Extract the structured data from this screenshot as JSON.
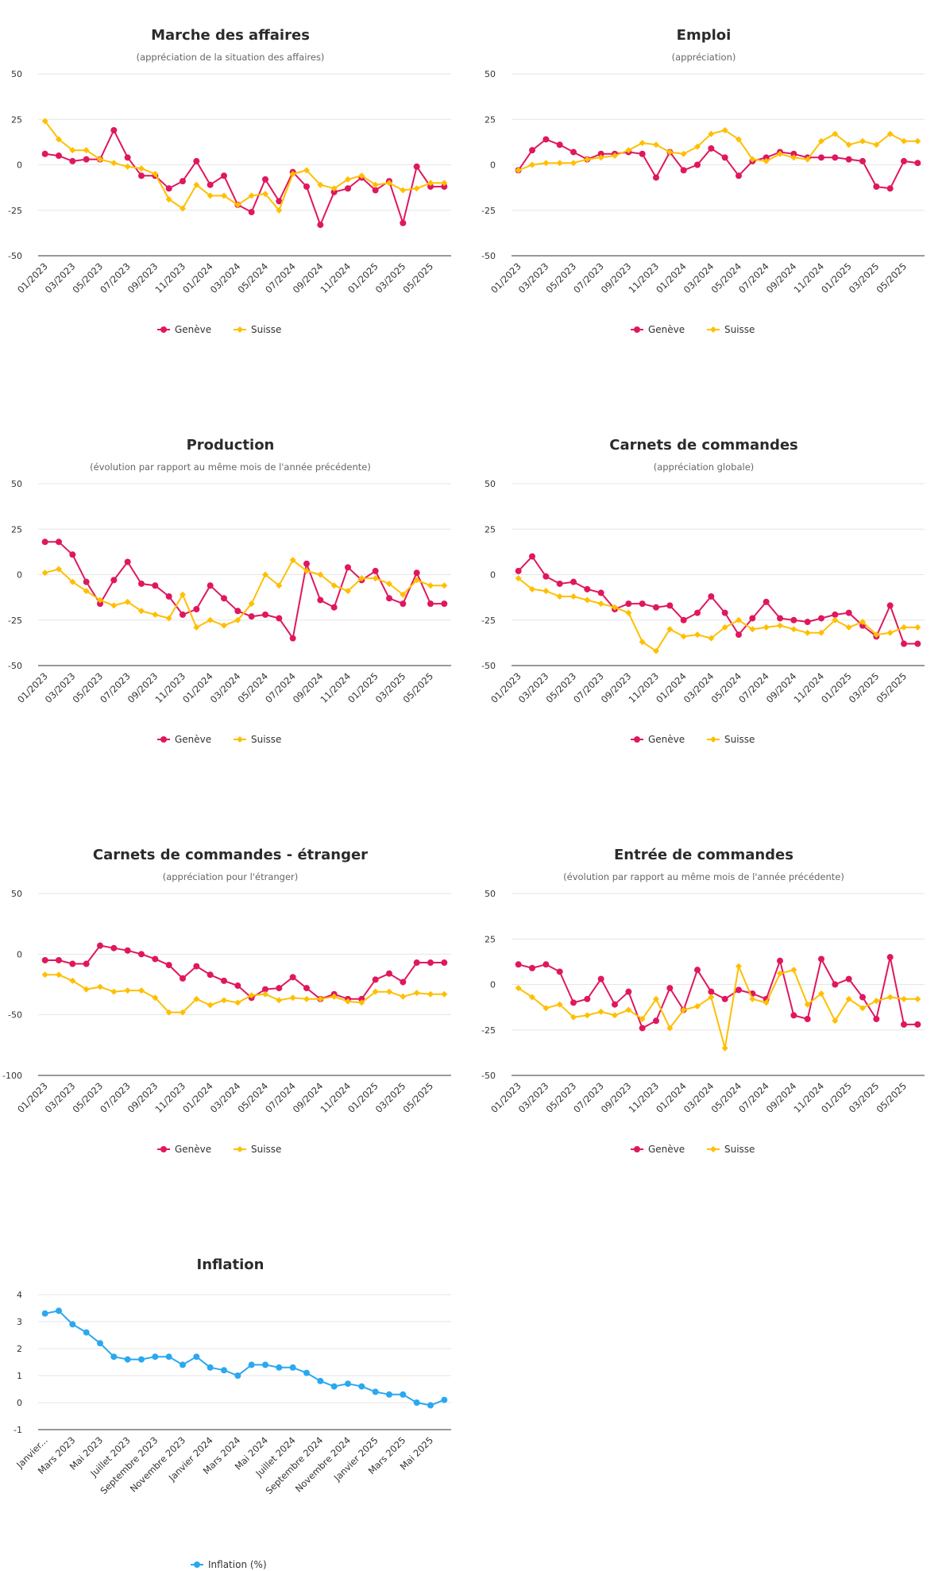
{
  "colors": {
    "geneve": "#e0175f",
    "suisse": "#ffbf00",
    "inflation": "#2aa8f0"
  },
  "chart_data": [
    {
      "type": "line",
      "title": "Marche des affaires",
      "subtitle": "(appréciation de la situation des affaires)",
      "ylim": [
        -50,
        50
      ],
      "yticks": [
        "50",
        "25",
        "0",
        "-25",
        "-50"
      ],
      "x": [
        "01/2023",
        "02/2023",
        "03/2023",
        "04/2023",
        "05/2023",
        "06/2023",
        "07/2023",
        "08/2023",
        "09/2023",
        "10/2023",
        "11/2023",
        "12/2023",
        "01/2024",
        "02/2024",
        "03/2024",
        "04/2024",
        "05/2024",
        "06/2024",
        "07/2024",
        "08/2024",
        "09/2024",
        "10/2024",
        "11/2024",
        "12/2024",
        "01/2025",
        "02/2025",
        "03/2025",
        "04/2025",
        "05/2025",
        "06/2025"
      ],
      "xtick_labels": [
        "01/2023",
        "03/2023",
        "05/2023",
        "07/2023",
        "09/2023",
        "11/2023",
        "01/2024",
        "03/2024",
        "05/2024",
        "07/2024",
        "09/2024",
        "11/2024",
        "01/2025",
        "03/2025",
        "05/2025"
      ],
      "series": [
        {
          "name": "Genève",
          "values": [
            6,
            5,
            2,
            3,
            3,
            19,
            4,
            -6,
            -6,
            -13,
            -9,
            2,
            -11,
            -6,
            -22,
            -26,
            -8,
            -20,
            -4,
            -12,
            -33,
            -15,
            -13,
            -7,
            -14,
            -9,
            -32,
            -1,
            -12,
            -12
          ]
        },
        {
          "name": "Suisse",
          "values": [
            24,
            14,
            8,
            8,
            3,
            1,
            -1,
            -2,
            -5,
            -19,
            -24,
            -11,
            -17,
            -17,
            -22,
            -17,
            -16,
            -25,
            -5,
            -3,
            -11,
            -13,
            -8,
            -6,
            -11,
            -10,
            -14,
            -13,
            -10,
            -10
          ]
        }
      ],
      "legend": "bottom-center"
    },
    {
      "type": "line",
      "title": "Emploi",
      "subtitle": "(appréciation)",
      "ylim": [
        -50,
        50
      ],
      "yticks": [
        "50",
        "25",
        "0",
        "-25",
        "-50"
      ],
      "x": [
        "01/2023",
        "02/2023",
        "03/2023",
        "04/2023",
        "05/2023",
        "06/2023",
        "07/2023",
        "08/2023",
        "09/2023",
        "10/2023",
        "11/2023",
        "12/2023",
        "01/2024",
        "02/2024",
        "03/2024",
        "04/2024",
        "05/2024",
        "06/2024",
        "07/2024",
        "08/2024",
        "09/2024",
        "10/2024",
        "11/2024",
        "12/2024",
        "01/2025",
        "02/2025",
        "03/2025",
        "04/2025",
        "05/2025",
        "06/2025"
      ],
      "xtick_labels": [
        "01/2023",
        "03/2023",
        "05/2023",
        "07/2023",
        "09/2023",
        "11/2023",
        "01/2024",
        "03/2024",
        "05/2024",
        "07/2024",
        "09/2024",
        "11/2024",
        "01/2025",
        "03/2025",
        "05/2025"
      ],
      "series": [
        {
          "name": "Genève",
          "values": [
            -3,
            8,
            14,
            11,
            7,
            3,
            6,
            6,
            7,
            6,
            -7,
            7,
            -3,
            0,
            9,
            4,
            -6,
            2,
            4,
            7,
            6,
            4,
            4,
            4,
            3,
            2,
            -12,
            -13,
            2,
            1
          ]
        },
        {
          "name": "Suisse",
          "values": [
            -3,
            0,
            1,
            1,
            1,
            3,
            4,
            5,
            8,
            12,
            11,
            7,
            6,
            10,
            17,
            19,
            14,
            3,
            2,
            6,
            4,
            3,
            13,
            17,
            11,
            13,
            11,
            17,
            13,
            13
          ]
        }
      ],
      "legend": "bottom-center"
    },
    {
      "type": "line",
      "title": "Production",
      "subtitle": "(évolution par rapport au même mois de l'année précédente)",
      "ylim": [
        -50,
        50
      ],
      "yticks": [
        "50",
        "25",
        "0",
        "-25",
        "-50"
      ],
      "x": [
        "01/2023",
        "02/2023",
        "03/2023",
        "04/2023",
        "05/2023",
        "06/2023",
        "07/2023",
        "08/2023",
        "09/2023",
        "10/2023",
        "11/2023",
        "12/2023",
        "01/2024",
        "02/2024",
        "03/2024",
        "04/2024",
        "05/2024",
        "06/2024",
        "07/2024",
        "08/2024",
        "09/2024",
        "10/2024",
        "11/2024",
        "12/2024",
        "01/2025",
        "02/2025",
        "03/2025",
        "04/2025",
        "05/2025",
        "06/2025"
      ],
      "xtick_labels": [
        "01/2023",
        "03/2023",
        "05/2023",
        "07/2023",
        "09/2023",
        "11/2023",
        "01/2024",
        "03/2024",
        "05/2024",
        "07/2024",
        "09/2024",
        "11/2024",
        "01/2025",
        "03/2025",
        "05/2025"
      ],
      "series": [
        {
          "name": "Genève",
          "values": [
            18,
            18,
            11,
            -4,
            -16,
            -3,
            7,
            -5,
            -6,
            -12,
            -22,
            -19,
            -6,
            -13,
            -20,
            -23,
            -22,
            -24,
            -35,
            6,
            -14,
            -18,
            4,
            -3,
            2,
            -13,
            -16,
            1,
            -16,
            -16
          ]
        },
        {
          "name": "Suisse",
          "values": [
            1,
            3,
            -4,
            -9,
            -14,
            -17,
            -15,
            -20,
            -22,
            -24,
            -11,
            -29,
            -25,
            -28,
            -25,
            -16,
            0,
            -6,
            8,
            2,
            0,
            -6,
            -9,
            -2,
            -2,
            -5,
            -11,
            -3,
            -6,
            -6
          ]
        }
      ],
      "legend": "bottom-center"
    },
    {
      "type": "line",
      "title": "Carnets de commandes",
      "subtitle": "(appréciation globale)",
      "ylim": [
        -50,
        50
      ],
      "yticks": [
        "50",
        "25",
        "0",
        "-25",
        "-50"
      ],
      "x": [
        "01/2023",
        "02/2023",
        "03/2023",
        "04/2023",
        "05/2023",
        "06/2023",
        "07/2023",
        "08/2023",
        "09/2023",
        "10/2023",
        "11/2023",
        "12/2023",
        "01/2024",
        "02/2024",
        "03/2024",
        "04/2024",
        "05/2024",
        "06/2024",
        "07/2024",
        "08/2024",
        "09/2024",
        "10/2024",
        "11/2024",
        "12/2024",
        "01/2025",
        "02/2025",
        "03/2025",
        "04/2025",
        "05/2025",
        "06/2025"
      ],
      "xtick_labels": [
        "01/2023",
        "03/2023",
        "05/2023",
        "07/2023",
        "09/2023",
        "11/2023",
        "01/2024",
        "03/2024",
        "05/2024",
        "07/2024",
        "09/2024",
        "11/2024",
        "01/2025",
        "03/2025",
        "05/2025"
      ],
      "series": [
        {
          "name": "Genève",
          "values": [
            2,
            10,
            -1,
            -5,
            -4,
            -8,
            -10,
            -19,
            -16,
            -16,
            -18,
            -17,
            -25,
            -21,
            -12,
            -21,
            -33,
            -24,
            -15,
            -24,
            -25,
            -26,
            -24,
            -22,
            -21,
            -28,
            -34,
            -17,
            -38,
            -38
          ]
        },
        {
          "name": "Suisse",
          "values": [
            -2,
            -8,
            -9,
            -12,
            -12,
            -14,
            -16,
            -18,
            -21,
            -37,
            -42,
            -30,
            -34,
            -33,
            -35,
            -29,
            -25,
            -30,
            -29,
            -28,
            -30,
            -32,
            -32,
            -25,
            -29,
            -26,
            -33,
            -32,
            -29,
            -29
          ]
        }
      ],
      "legend": "bottom-center"
    },
    {
      "type": "line",
      "title": "Carnets de commandes - étranger",
      "subtitle": "(appréciation pour l'étranger)",
      "ylim": [
        -100,
        50
      ],
      "yticks": [
        "50",
        "0",
        "-50",
        "-100"
      ],
      "x": [
        "01/2023",
        "02/2023",
        "03/2023",
        "04/2023",
        "05/2023",
        "06/2023",
        "07/2023",
        "08/2023",
        "09/2023",
        "10/2023",
        "11/2023",
        "12/2023",
        "01/2024",
        "02/2024",
        "03/2024",
        "04/2024",
        "05/2024",
        "06/2024",
        "07/2024",
        "08/2024",
        "09/2024",
        "10/2024",
        "11/2024",
        "12/2024",
        "01/2025",
        "02/2025",
        "03/2025",
        "04/2025",
        "05/2025",
        "06/2025"
      ],
      "xtick_labels": [
        "01/2023",
        "03/2023",
        "05/2023",
        "07/2023",
        "09/2023",
        "11/2023",
        "01/2024",
        "03/2024",
        "05/2024",
        "07/2024",
        "09/2024",
        "11/2024",
        "01/2025",
        "03/2025",
        "05/2025"
      ],
      "series": [
        {
          "name": "Genève",
          "values": [
            -5,
            -5,
            -8,
            -8,
            7,
            5,
            3,
            0,
            -4,
            -9,
            -20,
            -10,
            -17,
            -22,
            -26,
            -36,
            -29,
            -28,
            -19,
            -28,
            -37,
            -33,
            -37,
            -37,
            -21,
            -16,
            -23,
            -7,
            -7,
            -7
          ]
        },
        {
          "name": "Suisse",
          "values": [
            -17,
            -17,
            -22,
            -29,
            -27,
            -31,
            -30,
            -30,
            -36,
            -48,
            -48,
            -37,
            -42,
            -38,
            -40,
            -34,
            -33,
            -38,
            -36,
            -37,
            -37,
            -35,
            -39,
            -40,
            -31,
            -31,
            -35,
            -32,
            -33,
            -33
          ]
        }
      ],
      "legend": "bottom-center"
    },
    {
      "type": "line",
      "title": "Entrée de commandes",
      "subtitle": "(évolution par rapport au même mois de l'année précédente)",
      "ylim": [
        -50,
        50
      ],
      "yticks": [
        "50",
        "25",
        "0",
        "-25",
        "-50"
      ],
      "x": [
        "01/2023",
        "02/2023",
        "03/2023",
        "04/2023",
        "05/2023",
        "06/2023",
        "07/2023",
        "08/2023",
        "09/2023",
        "10/2023",
        "11/2023",
        "12/2023",
        "01/2024",
        "02/2024",
        "03/2024",
        "04/2024",
        "05/2024",
        "06/2024",
        "07/2024",
        "08/2024",
        "09/2024",
        "10/2024",
        "11/2024",
        "12/2024",
        "01/2025",
        "02/2025",
        "03/2025",
        "04/2025",
        "05/2025",
        "06/2025"
      ],
      "xtick_labels": [
        "01/2023",
        "03/2023",
        "05/2023",
        "07/2023",
        "09/2023",
        "11/2023",
        "01/2024",
        "03/2024",
        "05/2024",
        "07/2024",
        "09/2024",
        "11/2024",
        "01/2025",
        "03/2025",
        "05/2025"
      ],
      "series": [
        {
          "name": "Genève",
          "values": [
            11,
            9,
            11,
            7,
            -10,
            -8,
            3,
            -11,
            -4,
            -24,
            -20,
            -2,
            -14,
            8,
            -4,
            -8,
            -3,
            -5,
            -8,
            13,
            -17,
            -19,
            14,
            0,
            3,
            -7,
            -19,
            15,
            -22,
            -22
          ]
        },
        {
          "name": "Suisse",
          "values": [
            -2,
            -7,
            -13,
            -11,
            -18,
            -17,
            -15,
            -17,
            -14,
            -19,
            -8,
            -24,
            -14,
            -12,
            -7,
            -35,
            10,
            -8,
            -10,
            6,
            8,
            -11,
            -5,
            -20,
            -8,
            -13,
            -9,
            -7,
            -8,
            -8
          ]
        }
      ],
      "legend": "bottom-center"
    },
    {
      "type": "line",
      "title": "Inflation",
      "subtitle": "",
      "ylim": [
        -1,
        4
      ],
      "yticks": [
        "4",
        "3",
        "2",
        "1",
        "0",
        "-1"
      ],
      "x": [
        "Janvier 2023",
        "Février 2023",
        "Mars 2023",
        "Avril 2023",
        "Mai 2023",
        "Juin 2023",
        "Juillet 2023",
        "Août 2023",
        "Septembre 2023",
        "Octobre 2023",
        "Novembre 2023",
        "Décembre 2023",
        "Janvier 2024",
        "Février 2024",
        "Mars 2024",
        "Avril 2024",
        "Mai 2024",
        "Juin 2024",
        "Juillet 2024",
        "Août 2024",
        "Septembre 2024",
        "Octobre 2024",
        "Novembre 2024",
        "Décembre 2024",
        "Janvier 2025",
        "Février 2025",
        "Mars 2025",
        "Avril 2025",
        "Mai 2025",
        "Juin 2025"
      ],
      "xtick_labels": [
        "Janvier...",
        "Mars 2023",
        "Mai 2023",
        "Juillet 2023",
        "Septembre 2023",
        "Novembre 2023",
        "Janvier 2024",
        "Mars 2024",
        "Mai 2024",
        "Juillet 2024",
        "Septembre 2024",
        "Novembre 2024",
        "Janvier 2025",
        "Mars 2025",
        "Mai 2025"
      ],
      "series": [
        {
          "name": "Inflation (%)",
          "values": [
            3.3,
            3.4,
            2.9,
            2.6,
            2.2,
            1.7,
            1.6,
            1.6,
            1.7,
            1.7,
            1.4,
            1.7,
            1.3,
            1.2,
            1.0,
            1.4,
            1.4,
            1.3,
            1.3,
            1.1,
            0.8,
            0.6,
            0.7,
            0.6,
            0.4,
            0.3,
            0.3,
            0.0,
            -0.1,
            0.1
          ]
        }
      ],
      "legend": "bottom-center"
    }
  ]
}
